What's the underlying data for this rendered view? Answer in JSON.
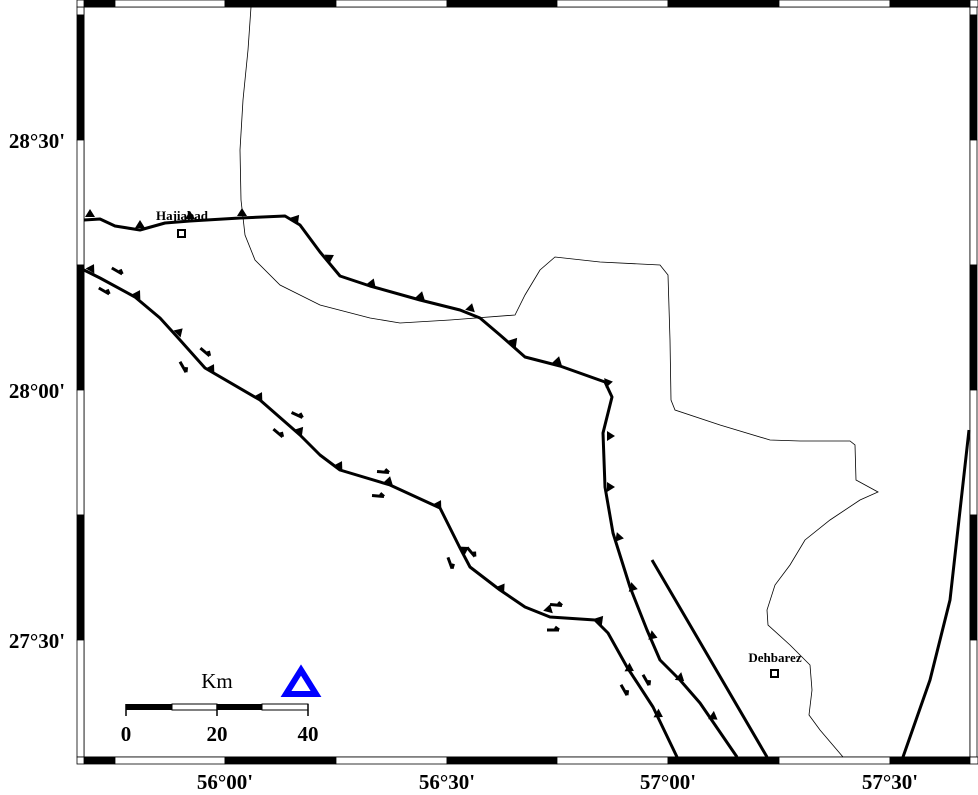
{
  "map": {
    "lon_labels": [
      "56°00'",
      "56°30'",
      "57°00'",
      "57°30'"
    ],
    "lat_labels": [
      "28°30'",
      "28°00'",
      "27°30'"
    ],
    "places": [
      {
        "name": "Hajiabad"
      },
      {
        "name": "Dehbarez"
      }
    ],
    "scale_bar": {
      "unit": "Km",
      "labels": [
        "0",
        "20",
        "40"
      ]
    },
    "symbol_color": "#0000ff",
    "line_color": "#000000"
  }
}
